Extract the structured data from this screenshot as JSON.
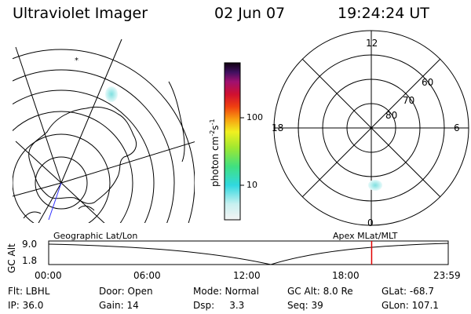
{
  "header": {
    "title": "Ultraviolet Imager",
    "date": "02 Jun 07",
    "time": "19:24:24 UT"
  },
  "colorbar": {
    "label": "photon cm",
    "exp1": "-2",
    "label_s": "s",
    "exp2": "-1",
    "ticks": [
      "100",
      "10"
    ]
  },
  "polar_plot": {
    "mlt_labels": {
      "top": "12",
      "left": "18",
      "right": "6",
      "bottom": "0"
    },
    "lat_labels": [
      "60",
      "70",
      "80"
    ]
  },
  "panels": {
    "left_title": "Geographic Lat/Lon",
    "right_title": "Apex MLat/MLT"
  },
  "altitude_plot": {
    "ylabel": "GC Alt",
    "y_ticks": [
      "9.0",
      "1.8"
    ],
    "x_ticks": [
      "00:00",
      "06:00",
      "12:00",
      "18:00",
      "23:59"
    ],
    "marker_time_hours": 19.4
  },
  "info": {
    "row1": [
      "Flt: LBHL",
      "Door: Open",
      "Mode: Normal",
      "GC Alt: 8.0 Re",
      "GLat: -68.7"
    ],
    "row2": [
      "IP: 36.0",
      "Gain: 14",
      "Dsp:     3.3",
      "Seq: 39",
      "GLon: 107.1"
    ]
  },
  "colors": {
    "marker": "#e00000",
    "map_line": "#000000",
    "aurora": "#7ee0e0",
    "meridian": "#3030ff"
  }
}
